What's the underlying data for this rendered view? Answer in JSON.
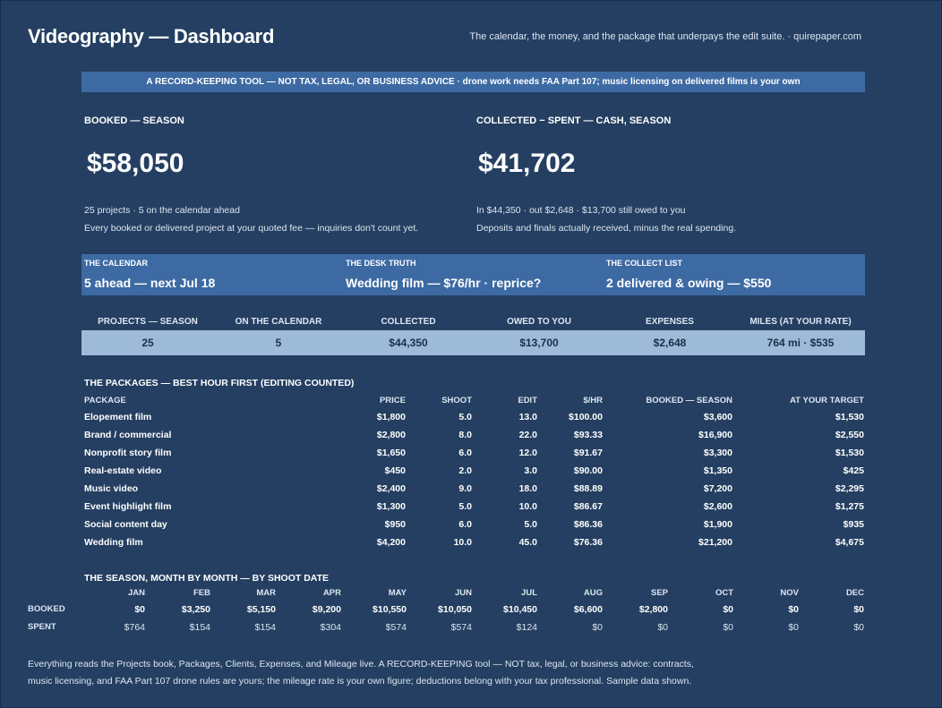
{
  "header": {
    "title": "Videography — Dashboard",
    "tagline": "The calendar, the money, and the package that underpays the edit suite.  ·  quirepaper.com"
  },
  "banner": "A RECORD-KEEPING TOOL — NOT TAX, LEGAL, OR BUSINESS ADVICE  ·  drone work needs FAA Part 107; music licensing on delivered films is your own",
  "kpis": {
    "booked": {
      "label": "BOOKED — SEASON",
      "value": "$58,050",
      "sub1": "25 projects  ·  5 on the calendar ahead",
      "sub2": "Every booked or delivered project at your quoted fee — inquiries don't count yet."
    },
    "net": {
      "label": "COLLECTED − SPENT — CASH, SEASON",
      "value": "$41,702",
      "sub1": "In $44,350  ·  out $2,648  ·  $13,700 still owed to you",
      "sub2": "Deposits and finals actually received, minus the real spending."
    }
  },
  "cards": [
    {
      "head": "THE CALENDAR",
      "value": "5 ahead — next Jul 18"
    },
    {
      "head": "THE DESK TRUTH",
      "value": "Wedding film — $76/hr · reprice?"
    },
    {
      "head": "THE COLLECT LIST",
      "value": "2 delivered & owing — $550"
    }
  ],
  "stats": [
    {
      "label": "PROJECTS — SEASON",
      "value": "25"
    },
    {
      "label": "ON THE CALENDAR",
      "value": "5"
    },
    {
      "label": "COLLECTED",
      "value": "$44,350"
    },
    {
      "label": "OWED TO YOU",
      "value": "$13,700"
    },
    {
      "label": "EXPENSES",
      "value": "$2,648"
    },
    {
      "label": "MILES (AT YOUR RATE)",
      "value": "764 mi · $535"
    }
  ],
  "packages": {
    "title": "THE PACKAGES — BEST HOUR FIRST (EDITING COUNTED)",
    "headers": {
      "package": "PACKAGE",
      "price": "PRICE",
      "shoot": "SHOOT",
      "edit": "EDIT",
      "rate": "$/HR",
      "booked": "BOOKED — SEASON",
      "target": "AT YOUR TARGET"
    },
    "rows": [
      {
        "package": "Elopement film",
        "price": "$1,800",
        "shoot": "5.0",
        "edit": "13.0",
        "rate": "$100.00",
        "booked": "$3,600",
        "target": "$1,530"
      },
      {
        "package": "Brand / commercial",
        "price": "$2,800",
        "shoot": "8.0",
        "edit": "22.0",
        "rate": "$93.33",
        "booked": "$16,900",
        "target": "$2,550"
      },
      {
        "package": "Nonprofit story film",
        "price": "$1,650",
        "shoot": "6.0",
        "edit": "12.0",
        "rate": "$91.67",
        "booked": "$3,300",
        "target": "$1,530"
      },
      {
        "package": "Real-estate video",
        "price": "$450",
        "shoot": "2.0",
        "edit": "3.0",
        "rate": "$90.00",
        "booked": "$1,350",
        "target": "$425"
      },
      {
        "package": "Music video",
        "price": "$2,400",
        "shoot": "9.0",
        "edit": "18.0",
        "rate": "$88.89",
        "booked": "$7,200",
        "target": "$2,295"
      },
      {
        "package": "Event highlight film",
        "price": "$1,300",
        "shoot": "5.0",
        "edit": "10.0",
        "rate": "$86.67",
        "booked": "$2,600",
        "target": "$1,275"
      },
      {
        "package": "Social content day",
        "price": "$950",
        "shoot": "6.0",
        "edit": "5.0",
        "rate": "$86.36",
        "booked": "$1,900",
        "target": "$935"
      },
      {
        "package": "Wedding film",
        "price": "$4,200",
        "shoot": "10.0",
        "edit": "45.0",
        "rate": "$76.36",
        "booked": "$21,200",
        "target": "$4,675"
      }
    ]
  },
  "season": {
    "title": "THE SEASON, MONTH BY MONTH — BY SHOOT DATE",
    "months": [
      "JAN",
      "FEB",
      "MAR",
      "APR",
      "MAY",
      "JUN",
      "JUL",
      "AUG",
      "SEP",
      "OCT",
      "NOV",
      "DEC"
    ],
    "booked_label": "BOOKED",
    "spent_label": "SPENT",
    "booked": [
      "$0",
      "$3,250",
      "$5,150",
      "$9,200",
      "$10,550",
      "$10,050",
      "$10,450",
      "$6,600",
      "$2,800",
      "$0",
      "$0",
      "$0"
    ],
    "spent": [
      "$764",
      "$154",
      "$154",
      "$304",
      "$574",
      "$574",
      "$124",
      "$0",
      "$0",
      "$0",
      "$0",
      "$0"
    ]
  },
  "footer": {
    "line1": "Everything reads the Projects book, Packages, Clients, Expenses, and Mileage live. A RECORD-KEEPING tool — NOT tax, legal, or business advice: contracts,",
    "line2": "music licensing, and FAA Part 107 drone rules are yours; the mileage rate is your own figure; deductions belong with your tax professional. Sample data shown."
  },
  "colors": {
    "background": "#243f61",
    "banner": "#3d6aa3",
    "stat_bar": "#9dbad9"
  }
}
